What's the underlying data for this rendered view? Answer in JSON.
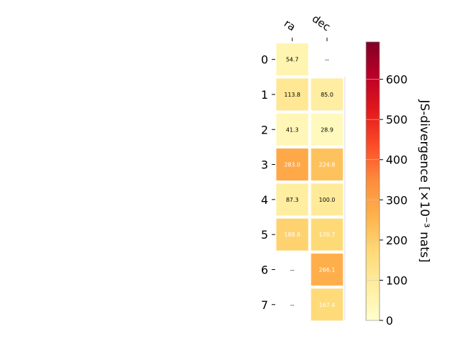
{
  "chart_data": {
    "type": "heatmap",
    "columns": [
      "ra",
      "dec"
    ],
    "rows": [
      "0",
      "1",
      "2",
      "3",
      "4",
      "5",
      "6",
      "7"
    ],
    "values": [
      [
        54.7,
        null
      ],
      [
        113.8,
        85.0
      ],
      [
        41.3,
        28.9
      ],
      [
        283.0,
        224.8
      ],
      [
        87.3,
        100.0
      ],
      [
        188.8,
        170.7
      ],
      [
        null,
        266.1
      ],
      [
        null,
        167.4
      ]
    ],
    "labels": [
      [
        "54.7",
        "--"
      ],
      [
        "113.8",
        "85.0"
      ],
      [
        "41.3",
        "28.9"
      ],
      [
        "283.0",
        "224.8"
      ],
      [
        "87.3",
        "100.0"
      ],
      [
        "188.8",
        "170.7"
      ],
      [
        "--",
        "266.1"
      ],
      [
        "--",
        "167.4"
      ]
    ],
    "colorbar": {
      "label": "JS-divergence [×10⁻³ nats]",
      "ticks": [
        0,
        100,
        200,
        300,
        400,
        500,
        600
      ],
      "tick_labels": [
        "0",
        "100",
        "200",
        "300",
        "400",
        "500",
        "600"
      ],
      "range": [
        0,
        693
      ],
      "colormap": "YlOrRd"
    }
  }
}
